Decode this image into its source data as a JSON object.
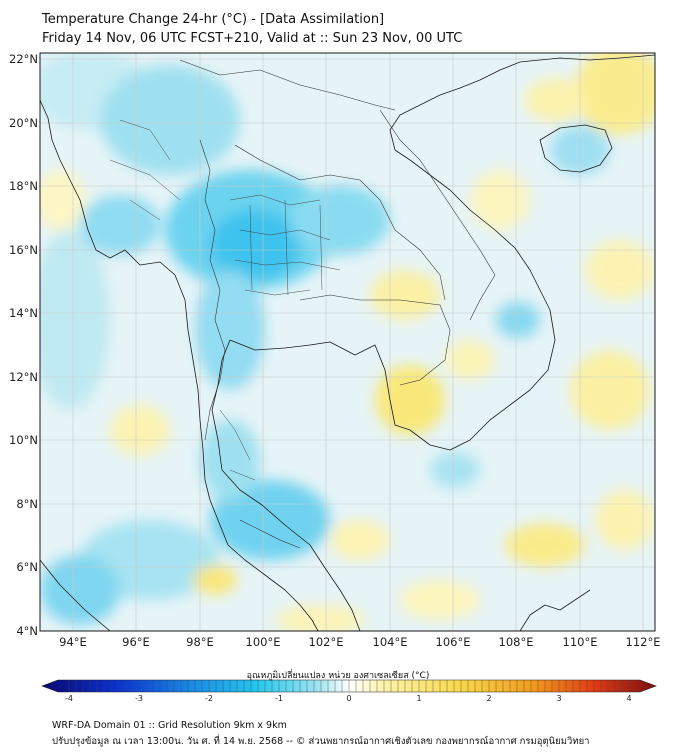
{
  "title": {
    "line1": "Temperature Change 24-hr (°C) - [Data Assimilation]",
    "line2": "Friday 14 Nov, 06 UTC FCST+210, Valid at :: Sun 23 Nov, 00 UTC"
  },
  "map": {
    "extent": {
      "lon_min": 93,
      "lon_max": 112.5,
      "lat_min": 4,
      "lat_max": 22.2
    },
    "lon_ticks": [
      94,
      96,
      98,
      100,
      102,
      104,
      106,
      108,
      110,
      112
    ],
    "lat_ticks": [
      4,
      6,
      8,
      10,
      12,
      14,
      16,
      18,
      20,
      22
    ],
    "lon_labels": [
      "94°E",
      "96°E",
      "98°E",
      "100°E",
      "102°E",
      "104°E",
      "106°E",
      "108°E",
      "110°E",
      "112°E"
    ],
    "lat_labels": [
      "4°N",
      "6°N",
      "8°N",
      "10°N",
      "12°N",
      "14°N",
      "16°N",
      "18°N",
      "20°N",
      "22°N"
    ]
  },
  "colorbar": {
    "title": "อุณหภูมิเปลี่ยนแปลง หน่วย องศาเซลเซียส (°C)",
    "min": -4,
    "max": 4,
    "tick_values": [
      -4,
      -3,
      -2,
      -1,
      0,
      1,
      2,
      3,
      4
    ],
    "tick_labels": [
      "-4",
      "-3",
      "-2",
      "-1",
      "0",
      "1",
      "2",
      "3",
      "4"
    ],
    "colors": [
      "#0a0a6e",
      "#0a2fd0",
      "#1a8fe8",
      "#22c8ee",
      "#9fe4f2",
      "#ffffff",
      "#fdf3a6",
      "#f9d94a",
      "#f29a1c",
      "#e23a12",
      "#7a0f12"
    ]
  },
  "footer": {
    "line1": "WRF-DA Domain 01 :: Grid Resolution 9km x 9km",
    "line2": "ปรับปรุงข้อมูล ณ เวลา 13:00น. วัน ศ. ที่ 14 พ.ย. 2568 -- © ส่วนพยากรณ์อากาศเชิงตัวเลข กองพยากรณ์อากาศ กรมอุตุนิยมวิทยา"
  }
}
